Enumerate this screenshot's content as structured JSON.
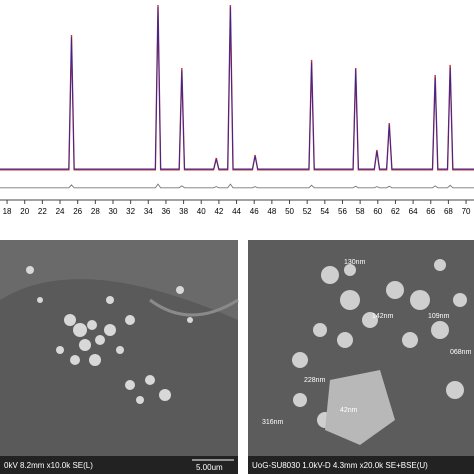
{
  "chart_data": {
    "type": "line",
    "x": [
      17.2,
      25.0,
      25.3,
      25.6,
      34.8,
      35.1,
      35.4,
      37.5,
      37.8,
      38.1,
      41.4,
      41.7,
      42.0,
      43.0,
      43.3,
      43.6,
      45.8,
      46.1,
      46.4,
      52.2,
      52.5,
      52.8,
      57.2,
      57.5,
      57.8,
      59.6,
      59.9,
      60.2,
      61.0,
      61.3,
      61.6,
      66.2,
      66.5,
      66.8,
      67.9,
      68.2,
      68.5,
      70.9
    ],
    "series": [
      {
        "color": "#d03030",
        "values": [
          0,
          0,
          80.3,
          0,
          0,
          98.2,
          0,
          0,
          60.7,
          0,
          0,
          7,
          0,
          0,
          98.2,
          0,
          0,
          8.8,
          0,
          0,
          65.5,
          0,
          0,
          60.7,
          0,
          0,
          11.8,
          0,
          0,
          27.9,
          0,
          0,
          56.5,
          0,
          0,
          62.5,
          0,
          0
        ]
      },
      {
        "color": "#2a2aa0",
        "values": [
          0.5,
          0.5,
          79,
          0.5,
          0.5,
          97,
          0.5,
          0.5,
          59,
          0.5,
          0.5,
          6,
          0.5,
          0.5,
          97,
          0.5,
          0.5,
          8,
          0.5,
          0.5,
          64,
          0.5,
          0.5,
          60,
          0.5,
          0.5,
          11,
          0.5,
          0.5,
          27,
          0.5,
          0.5,
          55,
          0.5,
          0.5,
          61,
          0.5,
          0.5
        ]
      },
      {
        "color": "#777777",
        "values": [
          -10.7,
          -10.7,
          -9,
          -10.7,
          -10.7,
          -8.5,
          -10.7,
          -10.7,
          -9.5,
          -10.7,
          -10.7,
          -10,
          -10.7,
          -10.7,
          -8.5,
          -10.7,
          -10.7,
          -10,
          -10.7,
          -10.7,
          -9.2,
          -10.7,
          -10.7,
          -9.8,
          -10.7,
          -10.7,
          -10,
          -10.7,
          -10.7,
          -9.8,
          -10.7,
          -10.7,
          -9.6,
          -10.7,
          -10.7,
          -9.2,
          -10.7,
          -10.7
        ]
      }
    ],
    "xlim": [
      17.2,
      70.9
    ],
    "ylim": [
      -15,
      100
    ],
    "xticks": [
      18,
      20,
      22,
      24,
      26,
      28,
      30,
      32,
      34,
      36,
      38,
      40,
      42,
      44,
      46,
      48,
      50,
      52,
      54,
      56,
      58,
      60,
      62,
      64,
      66,
      68,
      70
    ]
  },
  "images": {
    "left": {
      "caption": "0kV 8.2mm x10.0k SE(L)",
      "scale": "5.00um"
    },
    "right": {
      "caption": "UoG-SU8030 1.0kV-D 4.3mm x20.0k SE+BSE(U)",
      "annotations": [
        "130nm",
        "142nm",
        "109nm",
        "228nm",
        "068nm",
        "316nm",
        "42nm"
      ]
    }
  }
}
